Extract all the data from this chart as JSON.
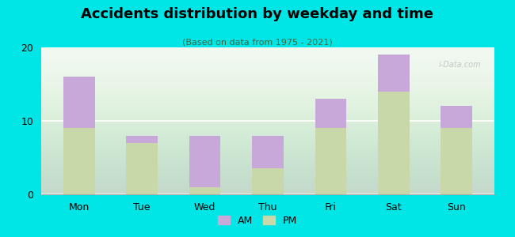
{
  "title": "Accidents distribution by weekday and time",
  "subtitle": "(Based on data from 1975 - 2021)",
  "categories": [
    "Mon",
    "Tue",
    "Wed",
    "Thu",
    "Fri",
    "Sat",
    "Sun"
  ],
  "pm_values": [
    9,
    7,
    1,
    3.5,
    9,
    14,
    9
  ],
  "am_values": [
    7,
    1,
    7,
    4.5,
    4,
    5,
    3
  ],
  "am_color": "#c8a8d8",
  "pm_color": "#c8d8a8",
  "background_color": "#00e5e5",
  "ylim": [
    0,
    20
  ],
  "yticks": [
    0,
    10,
    20
  ],
  "bar_width": 0.5,
  "legend_am": "AM",
  "legend_pm": "PM",
  "watermark": "i-Data.com"
}
